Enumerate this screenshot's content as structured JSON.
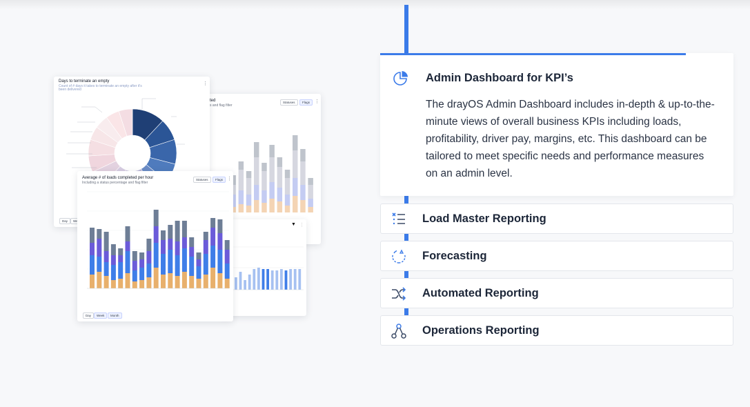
{
  "features": {
    "open": {
      "title": "Admin Dashboard for KPI’s",
      "description": "The drayOS Admin Dashboard includes in-depth & up-to-the-minute views of overall business KPIs including loads, profitability, driver pay, margins, etc. This dashboard can be tailored to meet specific needs and performance measures on an admin level.",
      "icon": "pie-chart-icon"
    },
    "items": [
      {
        "label": "Load Master Reporting",
        "icon": "list-icon"
      },
      {
        "label": "Forecasting",
        "icon": "forecast-icon"
      },
      {
        "label": "Automated Reporting",
        "icon": "shuffle-icon"
      },
      {
        "label": "Operations Reporting",
        "icon": "nodes-icon"
      }
    ]
  },
  "colors": {
    "accent": "#3b7be9"
  },
  "illustration": {
    "donut_card": {
      "title": "Days to terminate an empty",
      "subtitle": "Count of # days it takes to terminate an empty after it's",
      "subtitle2": "been delivered",
      "tabs": [
        "Day",
        "We"
      ]
    },
    "back_card": {
      "title": "ted",
      "subtitle": "s and flag filter",
      "pills": [
        "Statuses",
        "Flags"
      ]
    },
    "front_card": {
      "title": "Average # of loads completed per hour",
      "subtitle": "Including a status percentage and flag filter",
      "pills": [
        "Statuses",
        "Flags"
      ],
      "tabs": [
        "Day",
        "Week",
        "Month"
      ]
    }
  }
}
